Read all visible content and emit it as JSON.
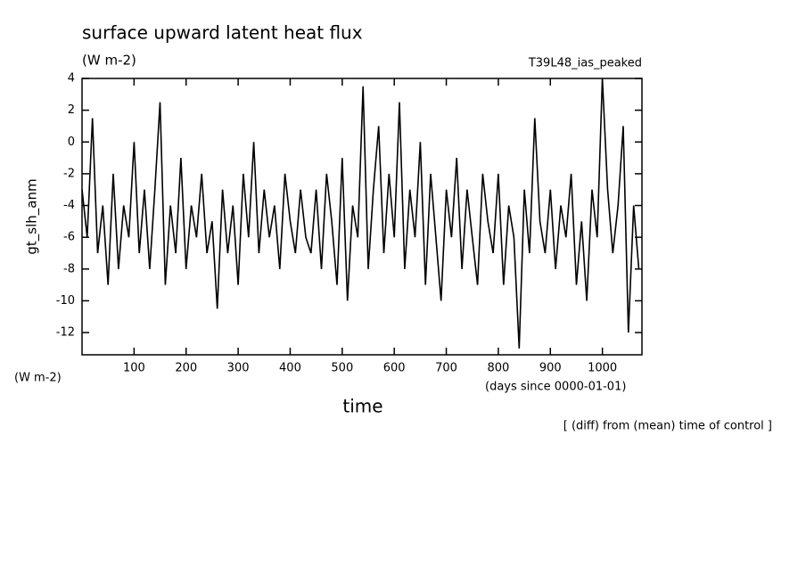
{
  "chart_data": {
    "type": "line",
    "title": "surface upward latent heat flux",
    "subtitle": "(W m-2)",
    "annotation": "T39L48_ias_peaked",
    "ylabel": "gt_slh_anm",
    "yunits": "(W m-2)",
    "xunits": "(days since 0000-01-01)",
    "xlabel": "time",
    "footnote": "[ (diff) from (mean) time of control ]",
    "color": "#000000",
    "xlim": [
      0,
      1076
    ],
    "ylim": [
      -13.4,
      4
    ],
    "xticks": [
      100,
      200,
      300,
      400,
      500,
      600,
      700,
      800,
      900,
      1000
    ],
    "yticks": [
      4,
      2,
      0,
      -2,
      -4,
      -6,
      -8,
      -10,
      -12
    ],
    "x": [
      0,
      10,
      20,
      30,
      40,
      50,
      60,
      70,
      80,
      90,
      100,
      110,
      120,
      130,
      140,
      150,
      160,
      170,
      180,
      190,
      200,
      210,
      220,
      230,
      240,
      250,
      260,
      270,
      280,
      290,
      300,
      310,
      320,
      330,
      340,
      350,
      360,
      370,
      380,
      390,
      400,
      410,
      420,
      430,
      440,
      450,
      460,
      470,
      480,
      490,
      500,
      510,
      520,
      530,
      540,
      550,
      560,
      570,
      580,
      590,
      600,
      610,
      620,
      630,
      640,
      650,
      660,
      670,
      680,
      690,
      700,
      710,
      720,
      730,
      740,
      750,
      760,
      770,
      780,
      790,
      800,
      810,
      820,
      830,
      840,
      850,
      860,
      870,
      880,
      890,
      900,
      910,
      920,
      930,
      940,
      950,
      960,
      970,
      980,
      990,
      1000,
      1010,
      1020,
      1030,
      1040,
      1050,
      1060,
      1070
    ],
    "values": [
      -3,
      -6,
      1.5,
      -7,
      -4,
      -9,
      -2,
      -8,
      -4,
      -6,
      0,
      -7,
      -3,
      -8,
      -3,
      2.5,
      -9,
      -4,
      -7,
      -1,
      -8,
      -4,
      -6,
      -2,
      -7,
      -5,
      -10.5,
      -3,
      -7,
      -4,
      -9,
      -2,
      -6,
      0,
      -7,
      -3,
      -6,
      -4,
      -8,
      -2,
      -5,
      -7,
      -3,
      -6,
      -7,
      -3,
      -8,
      -2,
      -5,
      -9,
      -1,
      -10,
      -4,
      -6,
      3.5,
      -8,
      -3,
      1,
      -7,
      -2,
      -6,
      2.5,
      -8,
      -3,
      -6,
      0,
      -9,
      -2,
      -6,
      -10,
      -3,
      -6,
      -1,
      -8,
      -3,
      -6,
      -9,
      -2,
      -5,
      -7,
      -2,
      -9,
      -4,
      -6,
      -13,
      -3,
      -7,
      1.5,
      -5,
      -7,
      -3,
      -8,
      -4,
      -6,
      -2,
      -9,
      -5,
      -10,
      -3,
      -6,
      4,
      -3,
      -7,
      -4,
      1,
      -12,
      -4,
      -8
    ]
  }
}
